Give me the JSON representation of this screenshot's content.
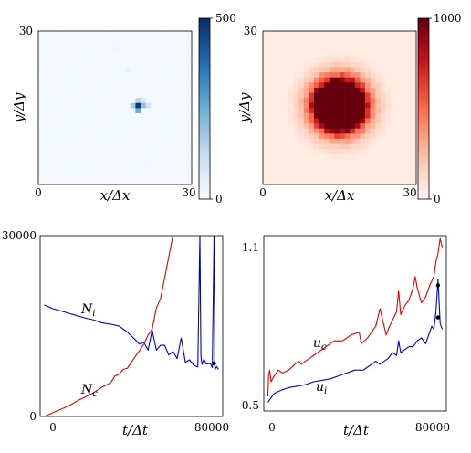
{
  "chart_data": [
    {
      "panel": "top-left",
      "type": "heatmap",
      "colormap": "Blues",
      "xlabel": "x/Δx",
      "ylabel": "y/Δy",
      "x_ticks": [
        "0",
        "30"
      ],
      "y_ticks": [
        "0",
        "30"
      ],
      "xlim": [
        0,
        30
      ],
      "ylim": [
        0,
        30
      ],
      "colorbar": {
        "min": 0,
        "max": 500,
        "ticks": [
          "0",
          "500"
        ]
      },
      "grid_size": 30,
      "background_level": 10,
      "hotspots": [
        {
          "x": 19,
          "y": 15,
          "value": 480
        },
        {
          "x": 19,
          "y": 14,
          "value": 260
        },
        {
          "x": 20,
          "y": 15,
          "value": 200
        },
        {
          "x": 18,
          "y": 15,
          "value": 170
        },
        {
          "x": 19,
          "y": 16,
          "value": 140
        },
        {
          "x": 21,
          "y": 15,
          "value": 90
        },
        {
          "x": 20,
          "y": 16,
          "value": 80
        },
        {
          "x": 17,
          "y": 22,
          "value": 35
        },
        {
          "x": 15,
          "y": 26,
          "value": 20
        }
      ]
    },
    {
      "panel": "top-right",
      "type": "heatmap",
      "colormap": "Reds",
      "xlabel": "x/Δx",
      "ylabel": "y/Δy",
      "x_ticks": [
        "0",
        "30"
      ],
      "y_ticks": [
        "0",
        "30"
      ],
      "xlim": [
        0,
        30
      ],
      "ylim": [
        0,
        30
      ],
      "colorbar": {
        "min": 0,
        "max": 1000,
        "ticks": [
          "0",
          "1000"
        ]
      },
      "grid_size": 30,
      "disk": {
        "center_x": 14.5,
        "center_y": 15,
        "radius": 5,
        "peak": 1000,
        "falloff": 4
      },
      "background_level": 45
    },
    {
      "panel": "bottom-left",
      "type": "line",
      "xlabel": "t/Δt",
      "x_ticks": [
        "0",
        "80000"
      ],
      "y_ticks": [
        "0",
        "30000"
      ],
      "xlim": [
        -2000,
        86000
      ],
      "ylim": [
        0,
        30000
      ],
      "series": [
        {
          "name": "N_i",
          "label_main": "N",
          "label_sub": "i",
          "color": "#0000cc",
          "x": [
            0,
            4000,
            8000,
            12000,
            16000,
            20000,
            24000,
            28000,
            32000,
            36000,
            40000,
            43000,
            46000,
            48000,
            50000,
            52000,
            54000,
            56000,
            58000,
            60000,
            62000,
            64000,
            66000,
            67000,
            68000,
            70000,
            72000,
            74000,
            75000,
            75500,
            76000,
            77000,
            78000,
            80000,
            81000,
            81800,
            82200,
            83000,
            84000
          ],
          "y": [
            18500,
            17900,
            17500,
            17100,
            16700,
            16300,
            16000,
            15500,
            15300,
            15000,
            14000,
            13000,
            12000,
            12300,
            11000,
            14300,
            11000,
            11800,
            11800,
            10200,
            10800,
            9600,
            13000,
            11000,
            9000,
            9400,
            8500,
            8200,
            30000,
            10000,
            8600,
            9500,
            8700,
            8800,
            8100,
            30000,
            7700,
            8300,
            7800
          ]
        },
        {
          "name": "N_c",
          "label_main": "N",
          "label_sub": "c",
          "color": "#dd0000",
          "x": [
            0,
            4000,
            8000,
            12000,
            16000,
            20000,
            24000,
            28000,
            32000,
            34000,
            36000,
            38000,
            40000,
            42000,
            44000,
            46000,
            48000,
            50000,
            52000,
            54000,
            56000,
            58000,
            60000,
            62000
          ],
          "y": [
            0,
            600,
            1200,
            1800,
            2600,
            3300,
            4000,
            4900,
            5600,
            6700,
            7000,
            7800,
            8000,
            9000,
            10000,
            11000,
            12000,
            13500,
            14500,
            18000,
            19500,
            23000,
            26500,
            30000
          ]
        }
      ],
      "markers": [
        {
          "x": 81800,
          "y": 8800,
          "color": "#000000"
        }
      ]
    },
    {
      "panel": "bottom-right",
      "type": "line",
      "xlabel": "t/Δt",
      "x_ticks": [
        "0",
        "80000"
      ],
      "y_ticks": [
        "0.5",
        "1.1"
      ],
      "xlim": [
        -2000,
        86000
      ],
      "ylim": [
        0.5,
        1.1
      ],
      "series": [
        {
          "name": "u_c",
          "label_main": "u",
          "label_sub": "c",
          "color": "#dd0000",
          "x": [
            0,
            300,
            800,
            1500,
            3000,
            5000,
            7000,
            10000,
            13000,
            15000,
            16000,
            20000,
            24000,
            28000,
            32000,
            36000,
            40000,
            44000,
            45000,
            48000,
            50000,
            52000,
            54000,
            57000,
            58000,
            60000,
            62000,
            63000,
            64000,
            66000,
            68000,
            70000,
            71000,
            72000,
            74000,
            76000,
            78000,
            80000,
            81000,
            82000,
            83000,
            84000
          ],
          "y": [
            0.55,
            0.62,
            0.64,
            0.6,
            0.62,
            0.64,
            0.63,
            0.64,
            0.66,
            0.67,
            0.66,
            0.68,
            0.7,
            0.72,
            0.74,
            0.74,
            0.76,
            0.77,
            0.73,
            0.75,
            0.77,
            0.79,
            0.85,
            0.76,
            0.78,
            0.81,
            0.84,
            0.91,
            0.83,
            0.86,
            0.88,
            0.92,
            0.96,
            0.92,
            0.87,
            0.89,
            0.93,
            0.96,
            1.01,
            1.04,
            1.09,
            1.06
          ]
        },
        {
          "name": "u_i",
          "label_main": "u",
          "label_sub": "i",
          "color": "#0000cc",
          "x": [
            0,
            3000,
            6000,
            10000,
            14000,
            18000,
            22000,
            26000,
            30000,
            34000,
            38000,
            42000,
            46000,
            48000,
            50000,
            52000,
            54000,
            56000,
            58000,
            60000,
            62000,
            63000,
            64000,
            66000,
            68000,
            70000,
            72000,
            74000,
            76000,
            78000,
            79000,
            80000,
            81000,
            82000,
            83000,
            84000
          ],
          "y": [
            0.53,
            0.56,
            0.57,
            0.58,
            0.585,
            0.59,
            0.6,
            0.605,
            0.61,
            0.62,
            0.63,
            0.64,
            0.64,
            0.65,
            0.66,
            0.67,
            0.66,
            0.67,
            0.68,
            0.7,
            0.69,
            0.74,
            0.7,
            0.71,
            0.72,
            0.72,
            0.74,
            0.75,
            0.73,
            0.77,
            0.79,
            0.78,
            0.84,
            0.95,
            0.8,
            0.78
          ]
        }
      ],
      "markers": [
        {
          "x": 82000,
          "y": 0.93,
          "color": "#000000"
        },
        {
          "x": 82000,
          "y": 0.82,
          "color": "#000000"
        }
      ]
    }
  ]
}
